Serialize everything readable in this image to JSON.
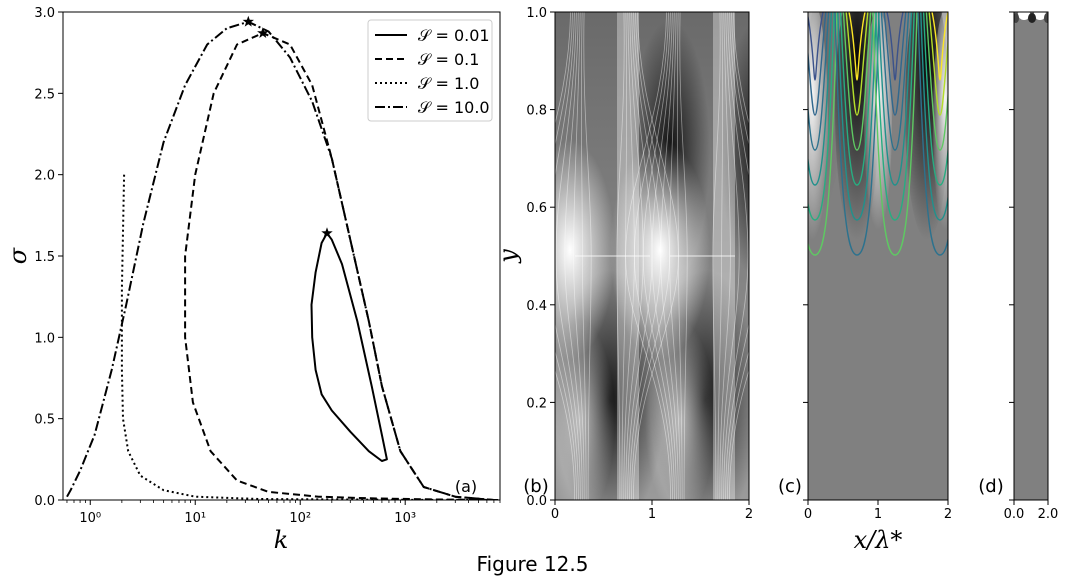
{
  "caption": "Figure 12.5",
  "chart_data": [
    {
      "panel": "(a)",
      "type": "line",
      "xlabel": "k",
      "ylabel": "σ",
      "x_scale": "log",
      "xlim": [
        0.55,
        8000
      ],
      "ylim": [
        0,
        3.0
      ],
      "x_ticks": [
        {
          "value": 1,
          "label": "10⁰"
        },
        {
          "value": 10,
          "label": "10¹"
        },
        {
          "value": 100,
          "label": "10²"
        },
        {
          "value": 1000,
          "label": "10³"
        }
      ],
      "y_ticks": [
        "0.0",
        "0.5",
        "1.0",
        "1.5",
        "2.0",
        "2.5",
        "3.0"
      ],
      "legend_position": "top-right",
      "grid": false,
      "series": [
        {
          "name": "𝒮 = 0.01",
          "style": "solid",
          "points": [
            [
              180,
              1.64
            ],
            [
              160,
              1.58
            ],
            [
              140,
              1.4
            ],
            [
              128,
              1.2
            ],
            [
              130,
              1.0
            ],
            [
              140,
              0.8
            ],
            [
              160,
              0.65
            ],
            [
              200,
              0.55
            ],
            [
              300,
              0.42
            ],
            [
              450,
              0.3
            ],
            [
              600,
              0.24
            ],
            [
              670,
              0.25
            ],
            [
              600,
              0.4
            ],
            [
              480,
              0.7
            ],
            [
              350,
              1.1
            ],
            [
              250,
              1.45
            ],
            [
              200,
              1.6
            ],
            [
              180,
              1.64
            ]
          ],
          "peak": [
            180,
            1.64
          ]
        },
        {
          "name": "𝒮 = 0.1",
          "style": "dashed",
          "points": [
            [
              7000,
              0.0
            ],
            [
              3000,
              0.02
            ],
            [
              1500,
              0.08
            ],
            [
              900,
              0.3
            ],
            [
              600,
              0.7
            ],
            [
              450,
              1.1
            ],
            [
              300,
              1.6
            ],
            [
              200,
              2.1
            ],
            [
              130,
              2.55
            ],
            [
              80,
              2.8
            ],
            [
              44,
              2.87
            ],
            [
              25,
              2.8
            ],
            [
              15,
              2.5
            ],
            [
              10,
              2.0
            ],
            [
              8,
              1.5
            ],
            [
              8,
              1.0
            ],
            [
              9.5,
              0.6
            ],
            [
              14,
              0.3
            ],
            [
              25,
              0.12
            ],
            [
              50,
              0.05
            ],
            [
              150,
              0.02
            ],
            [
              500,
              0.01
            ],
            [
              2000,
              0.003
            ],
            [
              8000,
              0.0
            ]
          ],
          "peak": [
            44,
            2.87
          ]
        },
        {
          "name": "𝒮 = 1.0",
          "style": "dotted",
          "points": [
            [
              2.1,
              2.0
            ],
            [
              2.0,
              1.3
            ],
            [
              2.0,
              0.8
            ],
            [
              2.05,
              0.5
            ],
            [
              2.3,
              0.3
            ],
            [
              3.0,
              0.15
            ],
            [
              5,
              0.06
            ],
            [
              10,
              0.02
            ],
            [
              40,
              0.006
            ],
            [
              1000,
              0.001
            ],
            [
              8000,
              0.0
            ]
          ]
        },
        {
          "name": "𝒮 = 10.0",
          "style": "dashdot",
          "points": [
            [
              0.6,
              0.02
            ],
            [
              0.65,
              0.06
            ],
            [
              0.8,
              0.18
            ],
            [
              1.1,
              0.4
            ],
            [
              1.6,
              0.8
            ],
            [
              2.2,
              1.2
            ],
            [
              3.2,
              1.7
            ],
            [
              5,
              2.2
            ],
            [
              8,
              2.55
            ],
            [
              13,
              2.8
            ],
            [
              20,
              2.9
            ],
            [
              32,
              2.94
            ],
            [
              50,
              2.88
            ],
            [
              80,
              2.72
            ],
            [
              130,
              2.45
            ],
            [
              200,
              2.1
            ],
            [
              300,
              1.6
            ],
            [
              450,
              1.1
            ],
            [
              600,
              0.7
            ],
            [
              900,
              0.3
            ],
            [
              1500,
              0.08
            ],
            [
              3000,
              0.02
            ],
            [
              7000,
              0.0
            ]
          ],
          "peak": [
            32,
            2.94
          ]
        }
      ]
    },
    {
      "panel": "(b)",
      "type": "heatmap",
      "ylabel": "y",
      "xlim": [
        0,
        2
      ],
      "ylim": [
        0,
        1.0
      ],
      "x_ticks": [
        "0",
        "1",
        "2"
      ],
      "y_ticks": [
        "0.0",
        "0.2",
        "0.4",
        "0.6",
        "0.8",
        "1.0"
      ],
      "colormap": "grayscale with white streamlines"
    },
    {
      "panel": "(c)",
      "type": "heatmap",
      "xlabel": "x/λ*",
      "xlim": [
        0,
        2
      ],
      "ylim": [
        0,
        1.0
      ],
      "x_ticks": [
        "0",
        "1",
        "2"
      ],
      "colormap": "grayscale with viridis contour lines"
    },
    {
      "panel": "(d)",
      "type": "heatmap",
      "xlim": [
        0,
        2.0
      ],
      "ylim": [
        0,
        1.0
      ],
      "x_ticks": [
        "0.0",
        "2.0"
      ],
      "colormap": "grayscale"
    }
  ]
}
